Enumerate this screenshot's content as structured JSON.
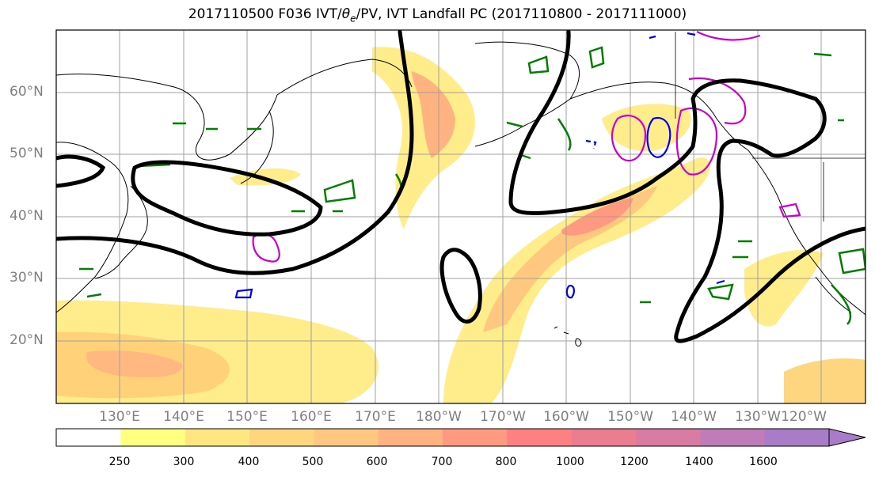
{
  "title": {
    "prefix": "2017110500 F036 IVT/",
    "theta": "θ",
    "theta_sub": "e",
    "suffix": "/PV, IVT Landfall PC (2017110800 - 2017111000)"
  },
  "axes": {
    "lat_labels": [
      "60°N",
      "50°N",
      "40°N",
      "30°N",
      "20°N"
    ],
    "lon_labels": [
      "130°E",
      "140°E",
      "150°E",
      "160°E",
      "170°E",
      "180°W",
      "170°W",
      "160°W",
      "150°W",
      "140°W",
      "130°W",
      "120°W"
    ]
  },
  "colorbar": {
    "ticks": [
      "250",
      "300",
      "400",
      "500",
      "600",
      "700",
      "800",
      "1000",
      "1200",
      "1400",
      "1600"
    ],
    "colors": [
      "#ffffff",
      "#ffff80",
      "#ffe680",
      "#ffd680",
      "#ffc880",
      "#ffb380",
      "#ff9a80",
      "#ff8080",
      "#ea7e90",
      "#d87ca4",
      "#c07cb8",
      "#a87cc8"
    ]
  },
  "contour_colors": {
    "height": "#000000",
    "theta_e": "#008000",
    "pv_positive": "#cc00cc",
    "pv_negative": "#0000ee"
  }
}
